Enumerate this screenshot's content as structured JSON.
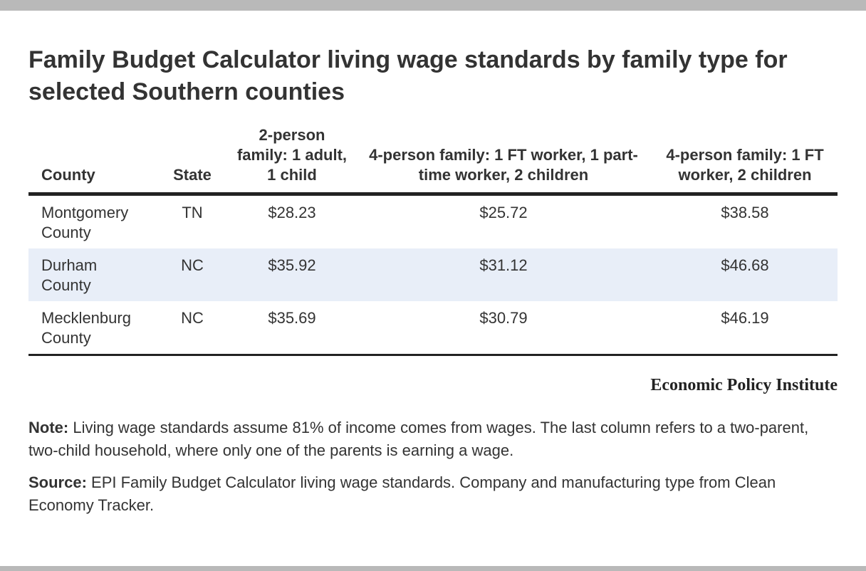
{
  "title": "Family Budget Calculator living wage standards by family type for selected Southern counties",
  "chart_data": {
    "type": "table",
    "columns": [
      "County",
      "State",
      "2-person family: 1 adult, 1 child",
      "4-person family: 1 FT worker, 1 part-time worker, 2 children",
      "4-person family: 1 FT worker, 2 children"
    ],
    "rows": [
      {
        "county": "Montgomery County",
        "state": "TN",
        "adult1_child1": "$28.23",
        "ft_pt_2children": "$25.72",
        "ft_2children": "$38.58"
      },
      {
        "county": "Durham County",
        "state": "NC",
        "adult1_child1": "$35.92",
        "ft_pt_2children": "$31.12",
        "ft_2children": "$46.68"
      },
      {
        "county": "Mecklenburg County",
        "state": "NC",
        "adult1_child1": "$35.69",
        "ft_pt_2children": "$30.79",
        "ft_2children": "$46.19"
      }
    ],
    "shaded_rows": [
      1
    ],
    "colors": {
      "row_shade": "#e8eef8",
      "rule": "#222222",
      "text": "#333333"
    }
  },
  "publisher": "Economic Policy Institute",
  "note": {
    "label": "Note:",
    "text": " Living wage standards assume 81% of income comes from wages. The last column refers to a two-parent, two-child household, where only one of the parents is earning a wage."
  },
  "source": {
    "label": "Source:",
    "text": " EPI Family Budget Calculator living wage standards. Company and manufacturing type from Clean Economy Tracker."
  }
}
